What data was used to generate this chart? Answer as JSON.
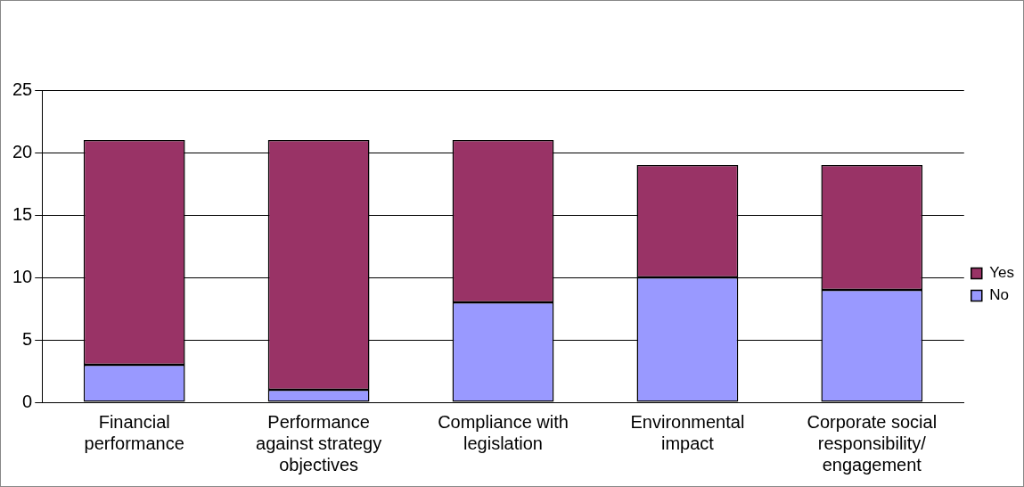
{
  "chart_data": {
    "type": "bar",
    "stacked": true,
    "categories": [
      "Financial performance",
      "Performance against strategy objectives",
      "Compliance with legislation",
      "Environmental impact",
      "Corporate social responsibility/ engagement"
    ],
    "series": [
      {
        "name": "No",
        "color": "#9999ff",
        "values": [
          3,
          1,
          8,
          10,
          9
        ]
      },
      {
        "name": "Yes",
        "color": "#993366",
        "values": [
          18,
          20,
          13,
          9,
          10
        ]
      }
    ],
    "ylim": [
      0,
      25
    ],
    "yticks": [
      0,
      5,
      10,
      15,
      20,
      25
    ],
    "grid": "y",
    "legend": "right"
  }
}
